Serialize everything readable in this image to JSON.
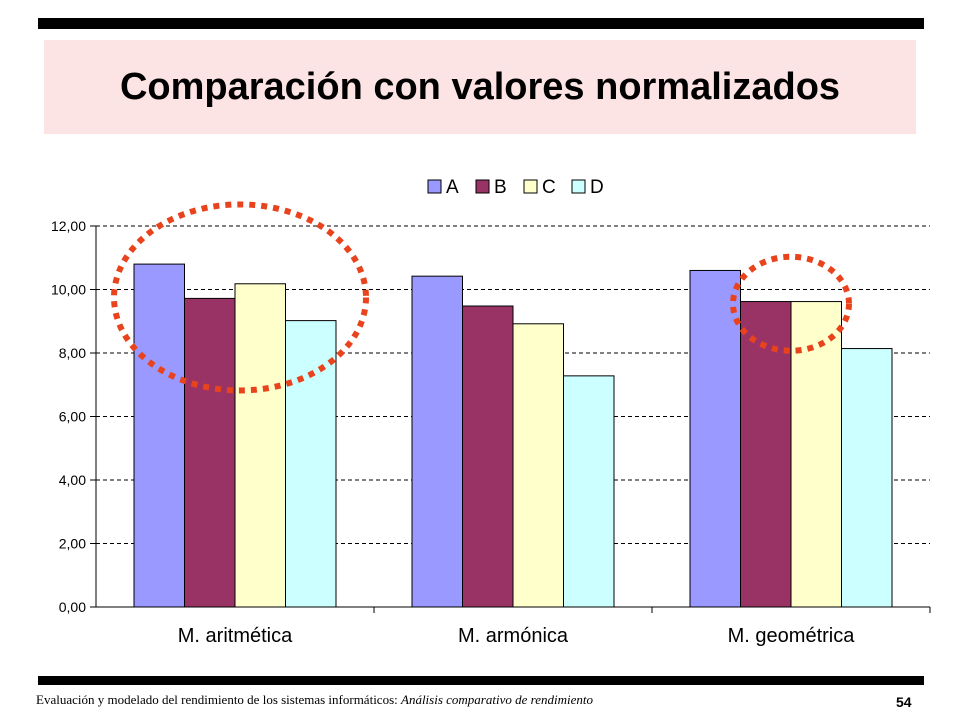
{
  "slide": {
    "title": "Comparación con valores normalizados",
    "footer_main": "Evaluación y modelado del rendimiento de los sistemas informáticos: ",
    "footer_sub": "Análisis comparativo de rendimiento",
    "page_number": "54"
  },
  "colors": {
    "title_background": "#fde4e4",
    "annotation_circle": "#e8431c"
  },
  "chart_data": {
    "type": "bar",
    "categories": [
      "M. aritmética",
      "M. armónica",
      "M. geométrica"
    ],
    "series": [
      {
        "name": "A",
        "color": "#9999ff",
        "values": [
          10.8,
          10.42,
          10.6
        ]
      },
      {
        "name": "B",
        "color": "#993366",
        "values": [
          9.72,
          9.48,
          9.62
        ]
      },
      {
        "name": "C",
        "color": "#ffffcc",
        "values": [
          10.18,
          8.92,
          9.62
        ]
      },
      {
        "name": "D",
        "color": "#ccffff",
        "values": [
          9.02,
          7.28,
          8.14
        ]
      }
    ],
    "yticks": [
      "0,00",
      "2,00",
      "4,00",
      "6,00",
      "8,00",
      "10,00",
      "12,00"
    ],
    "ylim": [
      0,
      12
    ],
    "grid": true,
    "legend_position": "top-center",
    "annotations": [
      {
        "type": "dotted-ellipse",
        "around": "M. aritmética"
      },
      {
        "type": "dotted-ellipse",
        "around": "M. geométrica B and C"
      }
    ]
  }
}
